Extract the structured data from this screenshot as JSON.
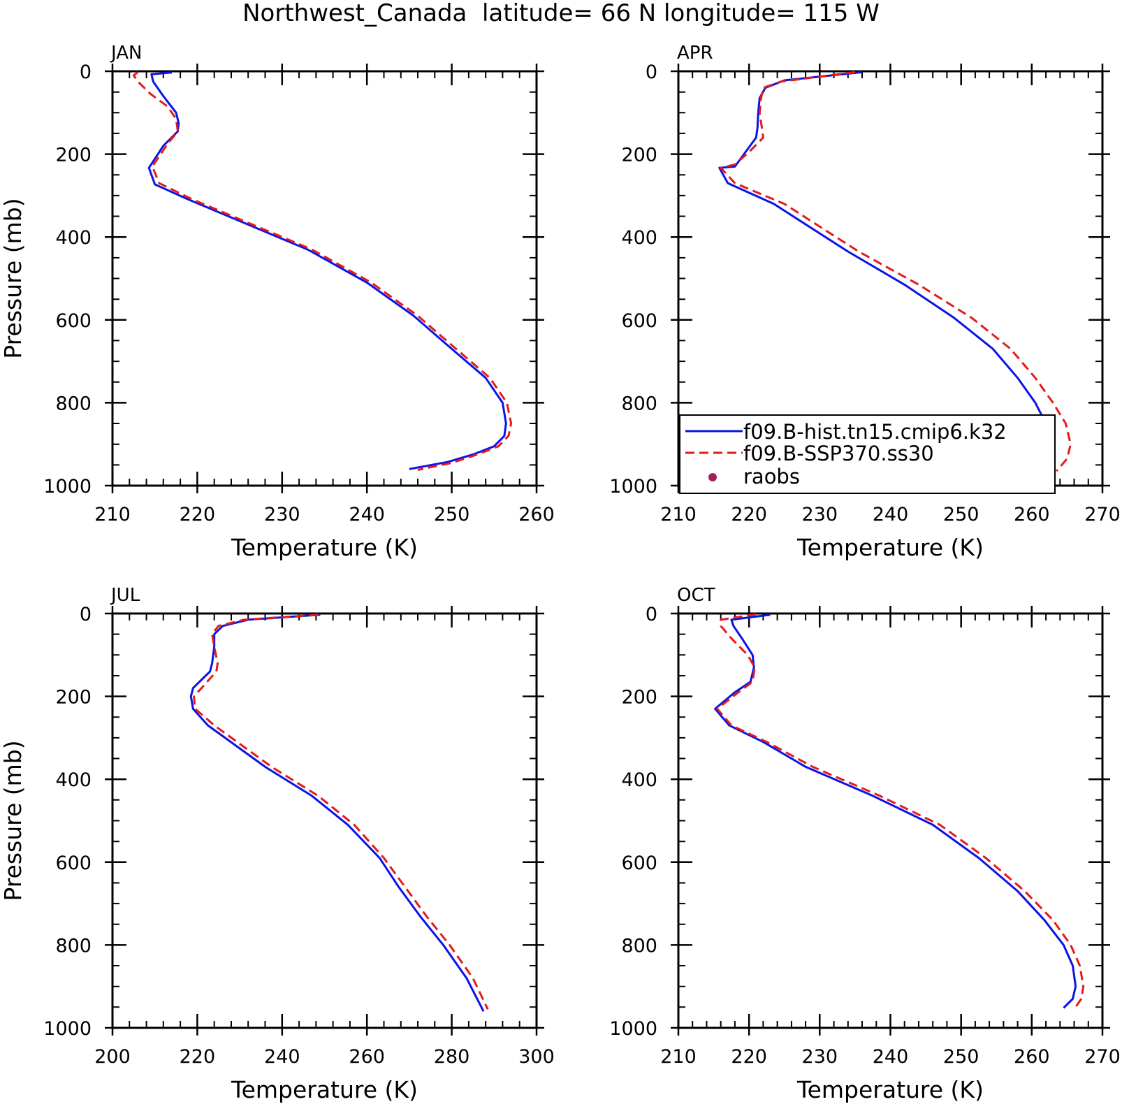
{
  "title": "Northwest_Canada  latitude= 66 N longitude= 115 W",
  "colors": {
    "hist": "#0a14e6",
    "ssp": "#e61a1a",
    "raobs": "#a0205a"
  },
  "legend": {
    "items": [
      {
        "label": "f09.B-hist.tn15.cmip6.k32",
        "style": "solid"
      },
      {
        "label": "f09.B-SSP370.ss30",
        "style": "dashed"
      },
      {
        "label": "raobs",
        "style": "dot"
      }
    ]
  },
  "chart_data": [
    {
      "type": "line",
      "panel": "JAN",
      "xlabel": "Temperature (K)",
      "ylabel": "Pressure (mb)",
      "xlim": [
        210,
        260
      ],
      "ylim": [
        0,
        1000
      ],
      "y_inverted": true,
      "xticks": [
        210,
        220,
        230,
        240,
        250,
        260
      ],
      "yticks": [
        0,
        200,
        400,
        600,
        800,
        1000
      ],
      "series": [
        {
          "name": "f09.B-hist.tn15.cmip6.k32",
          "x": [
            217,
            214.6,
            214.8,
            216,
            217.5,
            217.8,
            217.7,
            216,
            214.3,
            215,
            219,
            226,
            233,
            240,
            245.5,
            250,
            254,
            256,
            256.4,
            256.2,
            255,
            252.5,
            249.5,
            245
          ],
          "y": [
            3,
            7,
            25,
            60,
            100,
            125,
            145,
            180,
            233,
            273,
            310,
            370,
            430,
            510,
            590,
            670,
            740,
            800,
            850,
            880,
            905,
            925,
            943,
            960
          ]
        },
        {
          "name": "f09.B-SSP370.ss30",
          "x": [
            213,
            212.5,
            213,
            214.5,
            216.5,
            217.5,
            217.7,
            216.5,
            214.7,
            215.5,
            219.5,
            226.5,
            233.5,
            240.5,
            246,
            250.5,
            254.5,
            256.5,
            257,
            256.7,
            255.5,
            253,
            250,
            246
          ],
          "y": [
            2,
            10,
            25,
            55,
            85,
            115,
            145,
            175,
            230,
            270,
            310,
            370,
            430,
            510,
            590,
            670,
            740,
            800,
            850,
            880,
            905,
            925,
            945,
            962
          ]
        }
      ]
    },
    {
      "type": "line",
      "panel": "APR",
      "xlabel": "Temperature (K)",
      "ylabel": "",
      "xlim": [
        210,
        270
      ],
      "ylim": [
        0,
        1000
      ],
      "y_inverted": true,
      "xticks": [
        210,
        220,
        230,
        240,
        250,
        260,
        270
      ],
      "yticks": [
        0,
        200,
        400,
        600,
        800,
        1000
      ],
      "series": [
        {
          "name": "f09.B-hist.tn15.cmip6.k32",
          "x": [
            236,
            225,
            222.3,
            221.5,
            221.3,
            221.2,
            221,
            219.5,
            218,
            215.8,
            217,
            223.5,
            234,
            242,
            249,
            254.5,
            258,
            260.5,
            262,
            262.3,
            261.7,
            259
          ],
          "y": [
            2,
            22,
            40,
            65,
            100,
            135,
            160,
            195,
            230,
            233,
            270,
            320,
            435,
            515,
            595,
            670,
            740,
            800,
            850,
            900,
            930,
            968
          ]
        },
        {
          "name": "f09.B-SSP370.ss30",
          "x": [
            235,
            224.5,
            222,
            221.7,
            221.5,
            221.8,
            222,
            220,
            218,
            216,
            218,
            225,
            235.5,
            244,
            251.5,
            257,
            260.5,
            263,
            264.8,
            265.5,
            265,
            263.5
          ],
          "y": [
            2,
            25,
            40,
            65,
            100,
            135,
            160,
            195,
            225,
            233,
            270,
            320,
            435,
            515,
            595,
            670,
            740,
            800,
            850,
            900,
            935,
            965
          ]
        }
      ]
    },
    {
      "type": "line",
      "panel": "JUL",
      "xlabel": "Temperature (K)",
      "ylabel": "Pressure (mb)",
      "xlim": [
        200,
        300
      ],
      "ylim": [
        0,
        1000
      ],
      "y_inverted": true,
      "xticks": [
        200,
        220,
        240,
        260,
        280,
        300
      ],
      "yticks": [
        0,
        200,
        400,
        600,
        800,
        1000
      ],
      "series": [
        {
          "name": "f09.B-hist.tn15.cmip6.k32",
          "x": [
            249,
            232,
            226,
            224,
            224,
            223.5,
            223,
            219,
            218.5,
            219,
            222.5,
            236,
            247,
            255.5,
            263,
            267.5,
            272.5,
            278,
            283.5,
            287.5
          ],
          "y": [
            3,
            15,
            30,
            50,
            80,
            120,
            140,
            180,
            200,
            230,
            270,
            370,
            440,
            510,
            590,
            660,
            730,
            800,
            880,
            960
          ]
        },
        {
          "name": "f09.B-SSP370.ss30",
          "x": [
            248.5,
            231,
            225,
            223.5,
            224,
            224.8,
            224.5,
            221,
            219.2,
            219.5,
            224,
            237.5,
            248.5,
            257,
            264,
            269,
            274,
            279.5,
            285,
            288.5
          ],
          "y": [
            3,
            15,
            30,
            50,
            80,
            120,
            140,
            180,
            200,
            230,
            270,
            370,
            440,
            510,
            590,
            660,
            730,
            800,
            880,
            955
          ]
        }
      ]
    },
    {
      "type": "line",
      "panel": "OCT",
      "xlabel": "Temperature (K)",
      "ylabel": "",
      "xlim": [
        210,
        270
      ],
      "ylim": [
        0,
        1000
      ],
      "y_inverted": true,
      "xticks": [
        210,
        220,
        230,
        240,
        250,
        260,
        270
      ],
      "yticks": [
        0,
        200,
        400,
        600,
        800,
        1000
      ],
      "series": [
        {
          "name": "f09.B-hist.tn15.cmip6.k32",
          "x": [
            223,
            217.5,
            217.8,
            219,
            220.5,
            220.7,
            220.2,
            218,
            215.2,
            217.2,
            222,
            228,
            237.5,
            246,
            252.5,
            258,
            261.8,
            264.5,
            265.8,
            266.2,
            265.8,
            264.5
          ],
          "y": [
            3,
            15,
            30,
            60,
            100,
            130,
            165,
            190,
            230,
            270,
            310,
            370,
            440,
            510,
            590,
            670,
            740,
            800,
            850,
            900,
            930,
            952
          ]
        },
        {
          "name": "f09.B-SSP370.ss30",
          "x": [
            221,
            216,
            216,
            217.5,
            219.8,
            220.8,
            220.5,
            218.5,
            215.5,
            217.5,
            222.5,
            229,
            238.5,
            247,
            253.5,
            259,
            263,
            265.5,
            266.8,
            267.3,
            267,
            266
          ],
          "y": [
            2,
            15,
            30,
            60,
            100,
            130,
            165,
            190,
            230,
            270,
            310,
            370,
            440,
            510,
            590,
            670,
            740,
            800,
            850,
            900,
            930,
            955
          ]
        }
      ]
    }
  ]
}
